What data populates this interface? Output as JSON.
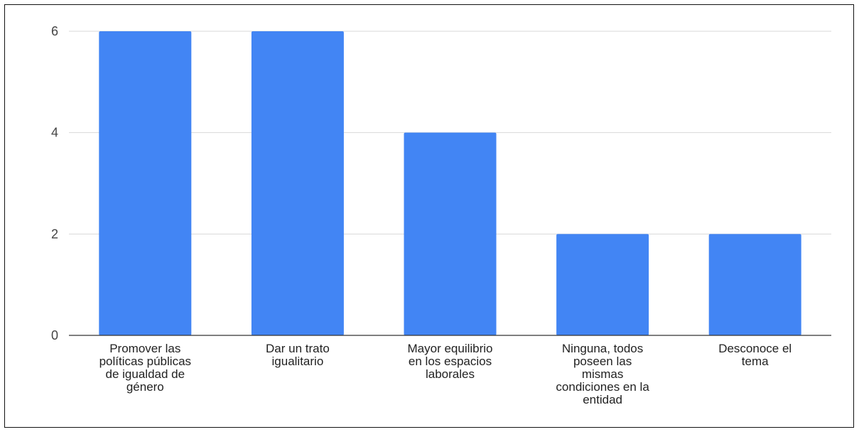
{
  "chart_data": {
    "type": "bar",
    "title": "",
    "xlabel": "",
    "ylabel": "",
    "categories": [
      "Promover las políticas públicas de igualdad de género",
      "Dar un trato igualitario",
      "Mayor equilibrio en los espacios laborales",
      "Ninguna, todos poseen las mismas condiciones en la entidad",
      "Desconoce el tema"
    ],
    "category_lines": [
      [
        "Promover las",
        "políticas públicas",
        "de igualdad de",
        "género"
      ],
      [
        "Dar un trato",
        "igualitario"
      ],
      [
        "Mayor equilibrio",
        "en los espacios",
        "laborales"
      ],
      [
        "Ninguna, todos",
        "poseen las",
        "mismas",
        "condiciones en la",
        "entidad"
      ],
      [
        "Desconoce el",
        "tema"
      ]
    ],
    "values": [
      6,
      6,
      4,
      2,
      2
    ],
    "ylim": [
      0,
      6
    ],
    "yticks": [
      "0",
      "2",
      "4",
      "6"
    ],
    "grid": true,
    "bar_color": "#4285f4",
    "grid_color": "#d9d9d9",
    "axis_color": "#333333"
  }
}
